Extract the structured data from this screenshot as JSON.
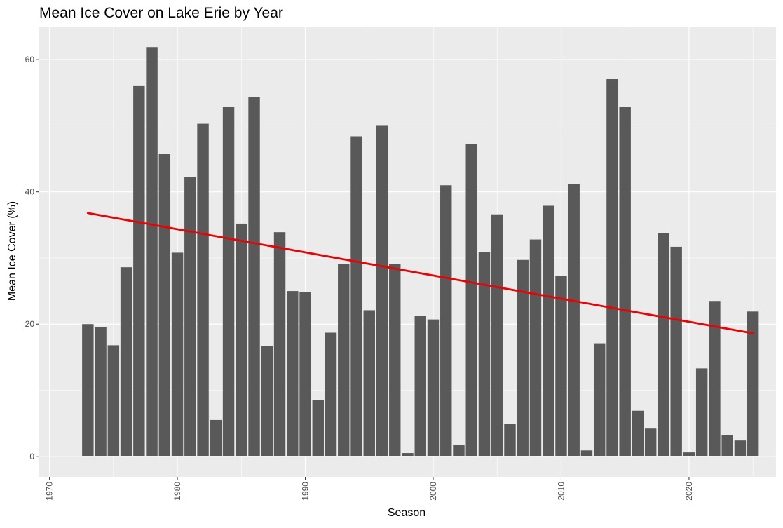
{
  "chart_data": {
    "type": "bar",
    "title": "Mean Ice Cover on Lake Erie by Year",
    "xlabel": "Season",
    "ylabel": "Mean Ice Cover (%)",
    "x": [
      1973,
      1974,
      1975,
      1976,
      1977,
      1978,
      1979,
      1980,
      1981,
      1982,
      1983,
      1984,
      1985,
      1986,
      1987,
      1988,
      1989,
      1990,
      1991,
      1992,
      1993,
      1994,
      1995,
      1996,
      1997,
      1998,
      1999,
      2000,
      2001,
      2002,
      2003,
      2004,
      2005,
      2006,
      2007,
      2008,
      2009,
      2010,
      2011,
      2012,
      2013,
      2014,
      2015,
      2016,
      2017,
      2018,
      2019,
      2020,
      2021,
      2022,
      2023,
      2024,
      2025
    ],
    "values": [
      20.0,
      19.5,
      16.8,
      28.6,
      56.1,
      61.9,
      45.8,
      30.8,
      42.3,
      50.3,
      5.5,
      52.9,
      35.2,
      54.3,
      16.7,
      33.9,
      25.0,
      24.8,
      8.5,
      18.7,
      29.1,
      48.4,
      22.1,
      50.1,
      29.1,
      0.5,
      21.2,
      20.7,
      41.0,
      1.7,
      47.2,
      30.9,
      36.6,
      4.9,
      29.7,
      32.8,
      37.9,
      27.3,
      41.2,
      0.9,
      17.1,
      57.1,
      52.9,
      6.9,
      4.2,
      33.8,
      31.7,
      0.6,
      13.3,
      23.5,
      3.2,
      2.4,
      21.9
    ],
    "trend": {
      "x": [
        1973,
        2025
      ],
      "y": [
        36.8,
        18.6
      ],
      "color": "#ee0000"
    },
    "xlim": [
      1969.2,
      2026.8
    ],
    "ylim": [
      -3.1,
      65
    ],
    "x_ticks": [
      1970,
      1980,
      1990,
      2000,
      2010,
      2020
    ],
    "x_tick_labels": [
      "1970",
      "1980",
      "1990",
      "2000",
      "2010",
      "2020"
    ],
    "y_ticks": [
      0,
      20,
      40,
      60
    ],
    "y_tick_labels": [
      "0",
      "20",
      "40",
      "60"
    ],
    "grid": true,
    "colors": {
      "bar": "#595959",
      "panel": "#ebebeb",
      "grid": "#ffffff"
    }
  }
}
